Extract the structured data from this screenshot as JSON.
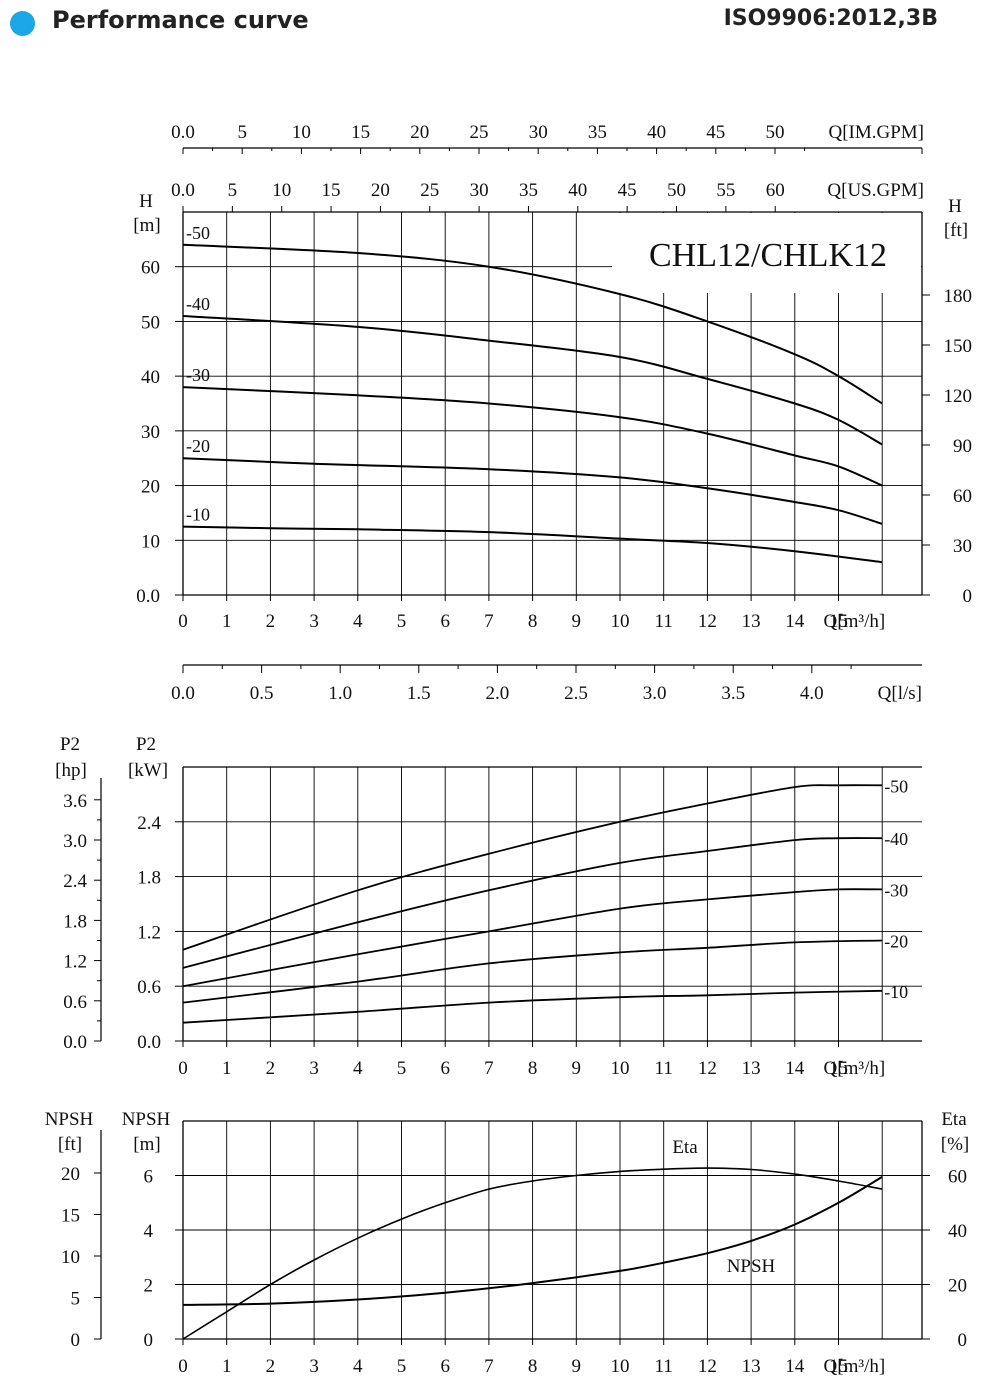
{
  "header": {
    "title": "Performance curve",
    "standard": "ISO9906:2012,3B",
    "bullet_color": "#1aa7e8"
  },
  "chart_data": [
    {
      "type": "line",
      "model_label": "CHL12/CHLK12",
      "x_axis": {
        "label": "Q[m³/h]",
        "range": [
          0,
          16
        ],
        "ticks": [
          0,
          1,
          2,
          3,
          4,
          5,
          6,
          7,
          8,
          9,
          10,
          11,
          12,
          13,
          14,
          15
        ]
      },
      "top_axis_im": {
        "label": "Q[IM.GPM]",
        "ticks": [
          "0.0",
          "5",
          "10",
          "15",
          "20",
          "25",
          "30",
          "35",
          "40",
          "45",
          "50"
        ]
      },
      "top_axis_us": {
        "label": "Q[US.GPM]",
        "ticks": [
          "0.0",
          "5",
          "10",
          "15",
          "20",
          "25",
          "30",
          "35",
          "40",
          "45",
          "50",
          "55",
          "60"
        ]
      },
      "bottom_axis_ls": {
        "label": "Q[l/s]",
        "ticks": [
          "0.0",
          "0.5",
          "1.0",
          "1.5",
          "2.0",
          "2.5",
          "3.0",
          "3.5",
          "4.0"
        ]
      },
      "y_left": {
        "label_top": "H",
        "label_unit": "[m]",
        "range": [
          0,
          70
        ],
        "ticks": [
          "0.0",
          "10",
          "20",
          "30",
          "40",
          "50",
          "60"
        ]
      },
      "y_right": {
        "label_top": "H",
        "label_unit": "[ft]",
        "ticks": [
          "0",
          "30",
          "60",
          "90",
          "120",
          "150",
          "180"
        ]
      },
      "series": [
        {
          "name": "-10",
          "x": [
            0,
            2,
            4,
            7,
            10,
            12,
            14,
            16
          ],
          "y": [
            12.5,
            12.2,
            12,
            11.5,
            10.3,
            9.5,
            8,
            6
          ]
        },
        {
          "name": "-20",
          "x": [
            0,
            3,
            7,
            10,
            12,
            14,
            15,
            16
          ],
          "y": [
            25,
            24,
            23,
            21.5,
            19.5,
            17,
            15.5,
            13
          ]
        },
        {
          "name": "-30",
          "x": [
            0,
            4,
            7,
            10,
            12,
            14,
            15,
            16
          ],
          "y": [
            38,
            36.5,
            35,
            32.5,
            29.5,
            25.5,
            23.5,
            20
          ]
        },
        {
          "name": "-40",
          "x": [
            0,
            4,
            7,
            10,
            12,
            14,
            15,
            16
          ],
          "y": [
            51,
            49,
            46.5,
            43.5,
            39.5,
            35,
            32,
            27.5
          ]
        },
        {
          "name": "-50",
          "x": [
            0,
            4,
            7,
            10,
            12,
            14,
            15,
            16
          ],
          "y": [
            64,
            62.5,
            60,
            55,
            50,
            44,
            40,
            35
          ]
        }
      ]
    },
    {
      "type": "line",
      "x_axis": {
        "label": "Q[m³/h]",
        "range": [
          0,
          16
        ],
        "ticks": [
          0,
          1,
          2,
          3,
          4,
          5,
          6,
          7,
          8,
          9,
          10,
          11,
          12,
          13,
          14,
          15
        ]
      },
      "y_left_outer": {
        "label_top": "P2",
        "label_unit": "[hp]",
        "ticks": [
          "0.0",
          "0.6",
          "1.2",
          "1.8",
          "2.4",
          "3.0",
          "3.6"
        ]
      },
      "y_left": {
        "label_top": "P2",
        "label_unit": "[kW]",
        "range": [
          0,
          3.0
        ],
        "ticks": [
          "0.0",
          "0.6",
          "1.2",
          "1.8",
          "2.4"
        ]
      },
      "series": [
        {
          "name": "-10",
          "x": [
            0,
            4,
            7,
            10,
            12,
            14,
            16
          ],
          "y": [
            0.2,
            0.32,
            0.42,
            0.48,
            0.5,
            0.53,
            0.55
          ]
        },
        {
          "name": "-20",
          "x": [
            0,
            4,
            7,
            10,
            12,
            14,
            16
          ],
          "y": [
            0.42,
            0.65,
            0.85,
            0.97,
            1.02,
            1.08,
            1.1
          ]
        },
        {
          "name": "-30",
          "x": [
            0,
            4,
            7,
            10,
            12,
            14,
            15,
            16
          ],
          "y": [
            0.6,
            0.95,
            1.2,
            1.45,
            1.55,
            1.63,
            1.66,
            1.66
          ]
        },
        {
          "name": "-40",
          "x": [
            0,
            4,
            7,
            10,
            12,
            14,
            15,
            16
          ],
          "y": [
            0.8,
            1.3,
            1.65,
            1.95,
            2.08,
            2.2,
            2.22,
            2.22
          ]
        },
        {
          "name": "-50",
          "x": [
            0,
            4,
            7,
            10,
            12,
            14,
            15,
            16
          ],
          "y": [
            1.0,
            1.65,
            2.05,
            2.4,
            2.6,
            2.78,
            2.8,
            2.8
          ]
        }
      ]
    },
    {
      "type": "line",
      "x_axis": {
        "label": "Q[m³/h]",
        "range": [
          0,
          16
        ],
        "ticks": [
          0,
          1,
          2,
          3,
          4,
          5,
          6,
          7,
          8,
          9,
          10,
          11,
          12,
          13,
          14,
          15
        ]
      },
      "y_left_outer": {
        "label_top": "NPSH",
        "label_unit": "[ft]",
        "ticks": [
          "0",
          "5",
          "10",
          "15",
          "20"
        ]
      },
      "y_left": {
        "label_top": "NPSH",
        "label_unit": "[m]",
        "range": [
          0,
          8
        ],
        "ticks": [
          "0",
          "2",
          "4",
          "6"
        ]
      },
      "y_right": {
        "label_top": "Eta",
        "label_unit": "[%]",
        "range": [
          0,
          80
        ],
        "ticks": [
          "0",
          "20",
          "40",
          "60"
        ]
      },
      "series": [
        {
          "name": "Eta",
          "axis": "right",
          "x": [
            0,
            1,
            2,
            3,
            4,
            5,
            6,
            7,
            8,
            9,
            10,
            11,
            12,
            13,
            14,
            15,
            16
          ],
          "y": [
            0,
            10,
            20,
            29,
            37,
            44,
            50,
            55,
            58,
            60,
            61.5,
            62.3,
            62.7,
            62.2,
            60.5,
            58,
            55
          ]
        },
        {
          "name": "NPSH",
          "axis": "left",
          "x": [
            0,
            2,
            4,
            6,
            8,
            10,
            11,
            12,
            13,
            14,
            15,
            16
          ],
          "y": [
            1.25,
            1.3,
            1.45,
            1.7,
            2.05,
            2.5,
            2.8,
            3.15,
            3.6,
            4.2,
            5.0,
            5.95
          ]
        }
      ]
    }
  ]
}
